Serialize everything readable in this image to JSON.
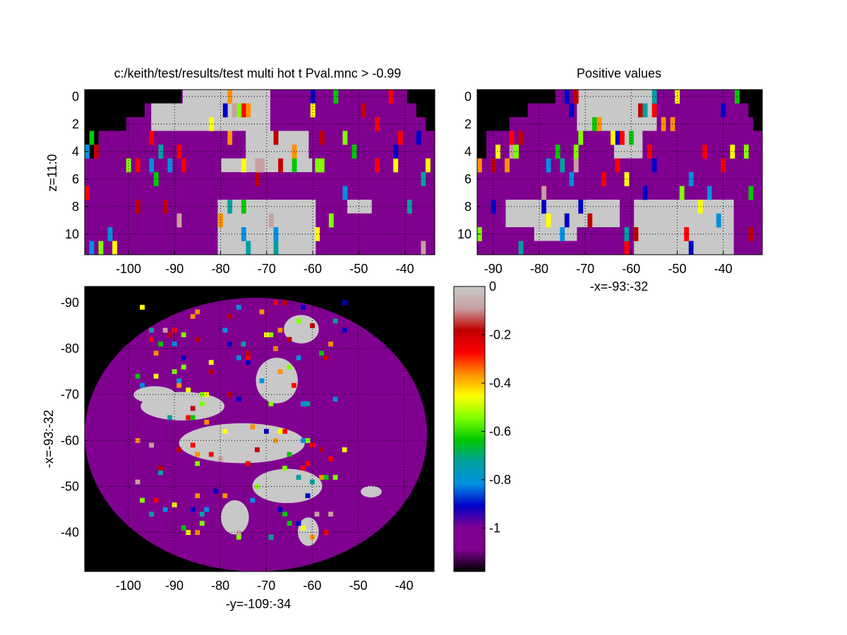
{
  "figure": {
    "background": "#ffffff",
    "axes_background": "#000000",
    "brain_color": "#800090",
    "blob_color": "#c8c8c8"
  },
  "chart_data": [
    {
      "type": "heatmap",
      "title": "c:/keith/test/results/test multi hot t Pval.mnc > -0.99",
      "xlabel": "",
      "ylabel": "z=11:0",
      "xlim": [
        -109,
        -34
      ],
      "ylim": [
        0,
        11
      ],
      "xticks": [
        "-100",
        "-90",
        "-80",
        "-70",
        "-60",
        "-50",
        "-40"
      ],
      "yticks": [
        "0",
        "2",
        "4",
        "6",
        "8",
        "10"
      ],
      "grid": true
    },
    {
      "type": "heatmap",
      "title": "Positive values",
      "xlabel": "-x=-93:-32",
      "ylabel": "",
      "xlim": [
        -93,
        -32
      ],
      "ylim": [
        0,
        11
      ],
      "xticks": [
        "-90",
        "-80",
        "-70",
        "-60",
        "-50",
        "-40"
      ],
      "yticks": [
        "0",
        "2",
        "4",
        "6",
        "8",
        "10"
      ],
      "grid": true
    },
    {
      "type": "heatmap",
      "title": "",
      "xlabel": "-y=-109:-34",
      "ylabel": "-x=-93:-32",
      "xlim": [
        -109,
        -34
      ],
      "ylim": [
        -93,
        -32
      ],
      "xticks": [
        "-100",
        "-90",
        "-80",
        "-70",
        "-60",
        "-50",
        "-40"
      ],
      "yticks": [
        "-90",
        "-80",
        "-70",
        "-60",
        "-50",
        "-40"
      ],
      "grid": true
    },
    {
      "type": "colorbar",
      "range": [
        -1.18,
        0
      ],
      "ticks": [
        "0",
        "-0.2",
        "-0.4",
        "-0.6",
        "-0.8",
        "-1"
      ],
      "tick_values": [
        0,
        -0.2,
        -0.4,
        -0.6,
        -0.8,
        -1
      ],
      "colormap": [
        "#000000",
        "#800090",
        "#800090",
        "#0000c8",
        "#0090e0",
        "#00a0a0",
        "#00c800",
        "#80ff00",
        "#ffff00",
        "#ff9000",
        "#ff0000",
        "#c00000",
        "#c8a0a0",
        "#c8c8c8"
      ]
    }
  ]
}
